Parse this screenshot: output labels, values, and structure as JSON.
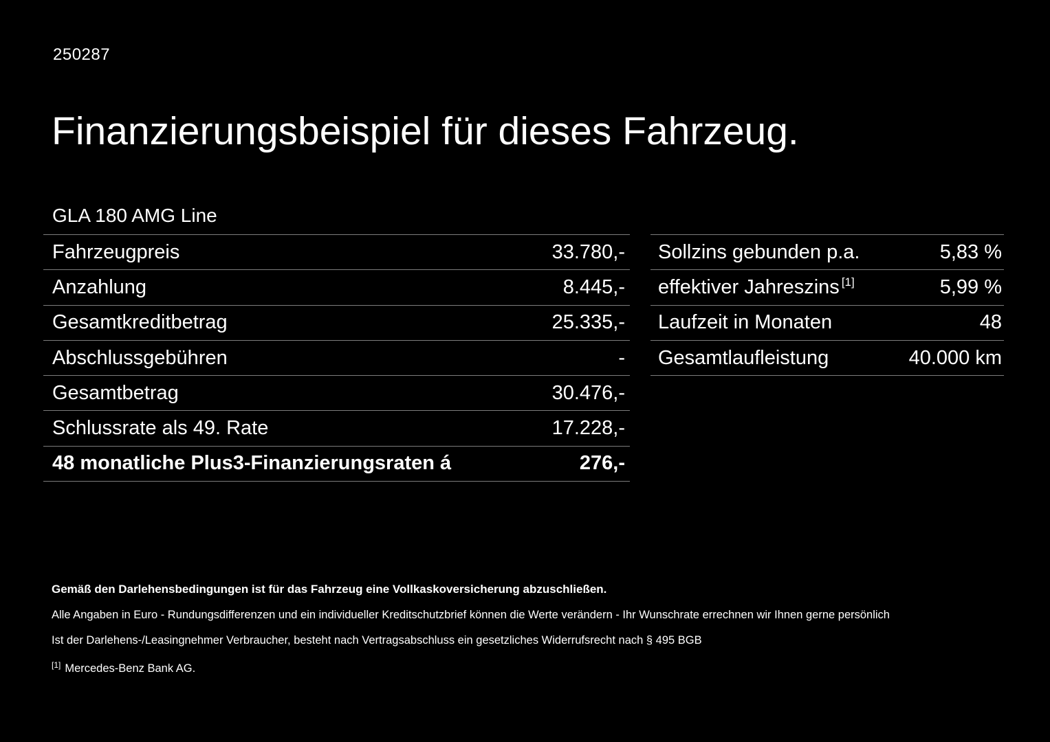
{
  "page": {
    "doc_id": "250287",
    "title": "Finanzierungsbeispiel für dieses Fahrzeug.",
    "vehicle": "GLA 180 AMG Line"
  },
  "left_table": {
    "rows": [
      {
        "label": "Fahrzeugpreis",
        "value": "33.780,-"
      },
      {
        "label": "Anzahlung",
        "value": "8.445,-"
      },
      {
        "label": "Gesamtkreditbetrag",
        "value": "25.335,-"
      },
      {
        "label": "Abschlussgebühren",
        "value": "-"
      },
      {
        "label": "Gesamtbetrag",
        "value": "30.476,-"
      },
      {
        "label": "Schlussrate als 49. Rate",
        "value": "17.228,-"
      },
      {
        "label": "48 monatliche Plus3-Finanzierungsraten á",
        "value": "276,-"
      }
    ]
  },
  "right_table": {
    "rows": [
      {
        "label": "Sollzins gebunden p.a.",
        "value": "5,83 %"
      },
      {
        "label": "effektiver Jahreszins",
        "sup": "[1]",
        "value": "5,99 %"
      },
      {
        "label": "Laufzeit in Monaten",
        "value": "48"
      },
      {
        "label": "Gesamtlaufleistung",
        "value": "40.000 km"
      }
    ]
  },
  "footer": {
    "bold_note": "Gemäß den Darlehensbedingungen ist für das Fahrzeug eine Vollkaskoversicherung abzuschließen.",
    "note_line1": "Alle Angaben in Euro - Rundungsdifferenzen und ein individueller Kreditschutzbrief können die Werte verändern - Ihr Wunschrate errechnen wir Ihnen gerne persönlich",
    "note_line2": "Ist der Darlehens-/Leasingnehmer Verbraucher, besteht nach Vertragsabschluss ein gesetzliches Widerrufsrecht nach § 495 BGB",
    "footnote_marker": "[1]",
    "footnote_text": "Mercedes-Benz Bank AG."
  },
  "colors": {
    "background": "#000000",
    "text": "#ffffff",
    "divider": "#7d7d7d"
  }
}
